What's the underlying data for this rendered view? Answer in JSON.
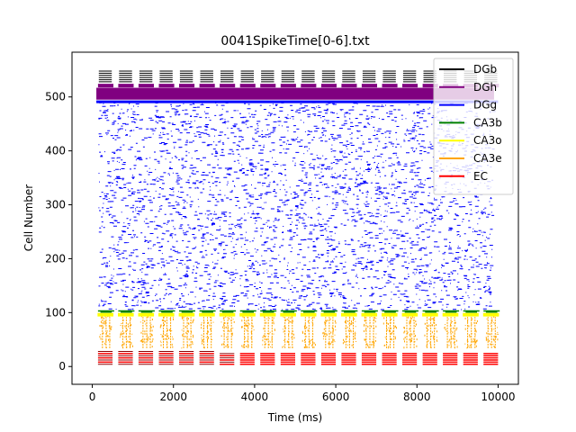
{
  "chart_data": {
    "type": "scatter",
    "title": "0041SpikeTime[0-6].txt",
    "xlabel": "Time (ms)",
    "ylabel": "Cell Number",
    "xlim": [
      -500,
      10500
    ],
    "ylim": [
      -33,
      583
    ],
    "xticks": [
      0,
      2000,
      4000,
      6000,
      8000,
      10000
    ],
    "yticks": [
      0,
      100,
      200,
      300,
      400,
      500
    ],
    "grid": false,
    "legend_position": "top-right",
    "series": [
      {
        "name": "DGb",
        "color": "#000000",
        "cells": [
          500,
          550
        ],
        "time_range": [
          0,
          10000
        ],
        "pattern": "periodic bursts",
        "period_ms": 500
      },
      {
        "name": "DGh",
        "color": "#800080",
        "cells": [
          495,
          525
        ],
        "time_range": [
          0,
          10000
        ],
        "pattern": "dense band"
      },
      {
        "name": "DGg",
        "color": "#0000ff",
        "cells": [
          105,
          490
        ],
        "time_range": [
          0,
          10000
        ],
        "pattern": "sparse random",
        "extra_band": 491
      },
      {
        "name": "CA3b",
        "color": "#008000",
        "cells": [
          100,
          106
        ],
        "time_range": [
          0,
          10000
        ],
        "pattern": "periodic bursts",
        "period_ms": 500
      },
      {
        "name": "CA3o",
        "color": "#ffff00",
        "cells": [
          93,
          100
        ],
        "time_range": [
          0,
          10000
        ],
        "pattern": "periodic bursts",
        "period_ms": 500
      },
      {
        "name": "CA3e",
        "color": "#ffa500",
        "cells": [
          33,
          100
        ],
        "time_range": [
          0,
          10000
        ],
        "pattern": "periodic bursts",
        "period_ms": 500
      },
      {
        "name": "EC",
        "color": "#ff0000",
        "cells": [
          0,
          30
        ],
        "time_range": [
          0,
          9800
        ],
        "pattern": "periodic bursts",
        "period_ms": 500
      }
    ]
  }
}
